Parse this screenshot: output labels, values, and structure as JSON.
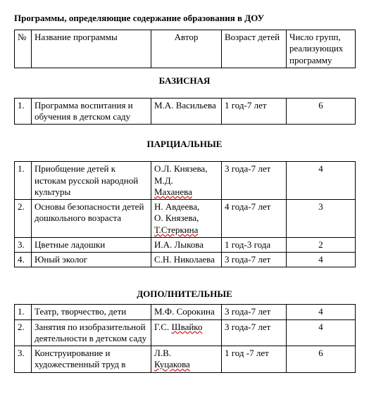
{
  "doc": {
    "title": "Программы, определяющие содержание образования в ДОУ"
  },
  "header": {
    "num": "№",
    "name": "Название программы",
    "author": "Автор",
    "age": "Возраст детей",
    "groups": "Число групп, реализующих программу"
  },
  "sections": {
    "basic": "БАЗИСНАЯ",
    "partial": "ПАРЦИАЛЬНЫЕ",
    "extra": "ДОПОЛНИТЕЛЬНЫЕ"
  },
  "basic": {
    "r1": {
      "num": "1.",
      "name": "Программа воспитания и обучения в детском саду",
      "author": "М.А. Васильева",
      "age": "1 год-7 лет",
      "groups": "6"
    }
  },
  "partial": {
    "r1": {
      "num": "1.",
      "name": "Приобщение детей к истокам русской народной культуры",
      "author_a": "О.Л. Князева,",
      "author_b": "М.Д.",
      "author_c": "Маханева",
      "age": "3 года-7 лет",
      "groups": "4"
    },
    "r2": {
      "num": "2.",
      "name": "Основы безопасности детей дошкольного возраста",
      "author_a": "Н. Авдеева,",
      "author_b": "О. Князева,",
      "author_c": "Т.Стеркина",
      "age": "4 года-7 лет",
      "groups": "3"
    },
    "r3": {
      "num": "3.",
      "name": "Цветные ладошки",
      "author": "И.А. Лыкова",
      "age": "1 год-3 года",
      "groups": "2"
    },
    "r4": {
      "num": "4.",
      "name": "Юный эколог",
      "author": "С.Н. Николаева",
      "age": "3 года-7 лет",
      "groups": "4"
    }
  },
  "extra": {
    "r1": {
      "num": "1.",
      "name": "Театр, творчество, дети",
      "author": "М.Ф. Сорокина",
      "age": "3 года-7 лет",
      "groups": "4"
    },
    "r2": {
      "num": "2.",
      "name": "Занятия по изобразительной деятельности в детском саду",
      "author_a": "Г.С. ",
      "author_b": "Швайко",
      "age": "3 года-7 лет",
      "groups": "4"
    },
    "r3": {
      "num": "3.",
      "name": "Конструирование и художественный труд в",
      "author_a": "Л.В.",
      "author_b": "Куцакова",
      "age": "1 год -7 лет",
      "groups": "6"
    }
  }
}
